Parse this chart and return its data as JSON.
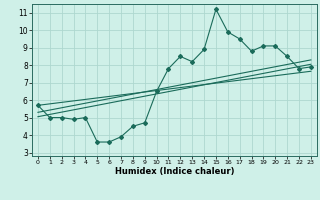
{
  "main_x": [
    0,
    1,
    2,
    3,
    4,
    5,
    6,
    7,
    8,
    9,
    10,
    11,
    12,
    13,
    14,
    15,
    16,
    17,
    18,
    19,
    20,
    21,
    22,
    23
  ],
  "main_y": [
    5.7,
    5.0,
    5.0,
    4.9,
    5.0,
    3.6,
    3.6,
    3.9,
    4.5,
    4.7,
    6.5,
    7.8,
    8.5,
    8.2,
    8.9,
    11.2,
    9.9,
    9.5,
    8.8,
    9.1,
    9.1,
    8.5,
    7.8,
    7.9
  ],
  "trend1_x": [
    0,
    23
  ],
  "trend1_y": [
    5.05,
    8.05
  ],
  "trend2_x": [
    0,
    23
  ],
  "trend2_y": [
    5.3,
    8.3
  ],
  "trend3_x": [
    0,
    23
  ],
  "trend3_y": [
    5.7,
    7.65
  ],
  "line_color": "#1a6b5a",
  "bg_color": "#cff0e8",
  "grid_color": "#aed8cf",
  "xlabel": "Humidex (Indice chaleur)",
  "xlim": [
    -0.5,
    23.5
  ],
  "ylim": [
    2.8,
    11.5
  ],
  "yticks": [
    3,
    4,
    5,
    6,
    7,
    8,
    9,
    10,
    11
  ],
  "xticks": [
    0,
    1,
    2,
    3,
    4,
    5,
    6,
    7,
    8,
    9,
    10,
    11,
    12,
    13,
    14,
    15,
    16,
    17,
    18,
    19,
    20,
    21,
    22,
    23
  ]
}
